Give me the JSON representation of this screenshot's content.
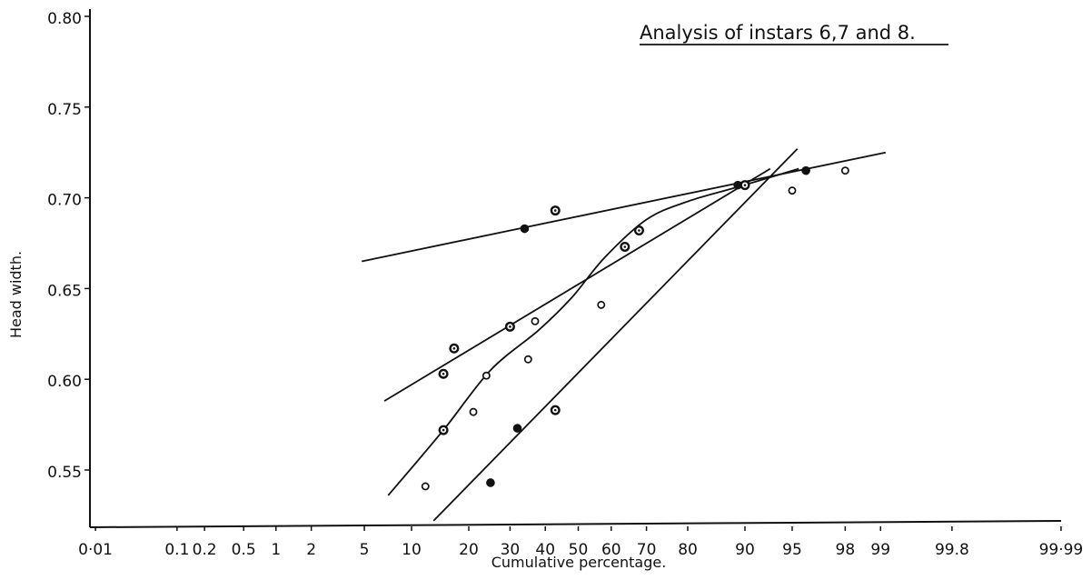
{
  "chart_data": {
    "type": "scatter",
    "title": "Analysis of instars 6,7 and 8.",
    "xlabel": "Cumulative percentage.",
    "ylabel": "Head width.",
    "x_scale": "probability",
    "x_ticks": [
      {
        "value": 0.01,
        "label": "0·01"
      },
      {
        "value": 0.1,
        "label": "0.1"
      },
      {
        "value": 0.2,
        "label": "0.2"
      },
      {
        "value": 0.5,
        "label": "0.5"
      },
      {
        "value": 1,
        "label": "1"
      },
      {
        "value": 2,
        "label": "2"
      },
      {
        "value": 5,
        "label": "5"
      },
      {
        "value": 10,
        "label": "10"
      },
      {
        "value": 20,
        "label": "20"
      },
      {
        "value": 30,
        "label": "30"
      },
      {
        "value": 40,
        "label": "40"
      },
      {
        "value": 50,
        "label": "50"
      },
      {
        "value": 60,
        "label": "60"
      },
      {
        "value": 70,
        "label": "70"
      },
      {
        "value": 80,
        "label": "80"
      },
      {
        "value": 90,
        "label": "90"
      },
      {
        "value": 95,
        "label": "95"
      },
      {
        "value": 98,
        "label": "98"
      },
      {
        "value": 99,
        "label": "99"
      },
      {
        "value": 99.8,
        "label": "99.8"
      },
      {
        "value": 99.99,
        "label": "99·99"
      }
    ],
    "y_ticks": [
      {
        "value": 0.55,
        "label": "0.55"
      },
      {
        "value": 0.6,
        "label": "0.60"
      },
      {
        "value": 0.65,
        "label": "0.65"
      },
      {
        "value": 0.7,
        "label": "0.70"
      },
      {
        "value": 0.75,
        "label": "0.75"
      },
      {
        "value": 0.8,
        "label": "0.80"
      }
    ],
    "ylim": [
      0.513,
      0.8
    ],
    "grid": false,
    "series": [
      {
        "marker": "filled",
        "points": [
          [
            34,
            0.683
          ],
          [
            32,
            0.573
          ],
          [
            25,
            0.543
          ],
          [
            89,
            0.707
          ],
          [
            96,
            0.715
          ]
        ]
      },
      {
        "marker": "dotted",
        "points": [
          [
            43,
            0.693
          ],
          [
            30,
            0.629
          ],
          [
            17,
            0.617
          ],
          [
            15,
            0.603
          ],
          [
            15,
            0.572
          ],
          [
            43,
            0.583
          ],
          [
            68,
            0.682
          ],
          [
            64,
            0.673
          ],
          [
            90,
            0.707
          ]
        ]
      },
      {
        "marker": "open",
        "points": [
          [
            12,
            0.541
          ],
          [
            21,
            0.582
          ],
          [
            24,
            0.602
          ],
          [
            35,
            0.611
          ],
          [
            37,
            0.632
          ],
          [
            57,
            0.641
          ],
          [
            95,
            0.704
          ],
          [
            98,
            0.715
          ]
        ]
      }
    ],
    "fit_lines": [
      {
        "kind": "straight",
        "points": [
          [
            4.8,
            0.665
          ],
          [
            99.1,
            0.725
          ]
        ]
      },
      {
        "kind": "straight",
        "points": [
          [
            6.8,
            0.588
          ],
          [
            93,
            0.716
          ]
        ]
      },
      {
        "kind": "straight",
        "points": [
          [
            13.3,
            0.522
          ],
          [
            95.4,
            0.727
          ]
        ]
      },
      {
        "kind": "curve",
        "points": [
          [
            7.2,
            0.536
          ],
          [
            15,
            0.572
          ],
          [
            25,
            0.605
          ],
          [
            38,
            0.627
          ],
          [
            48,
            0.645
          ],
          [
            58,
            0.667
          ],
          [
            70,
            0.688
          ],
          [
            80,
            0.698
          ],
          [
            89,
            0.706
          ],
          [
            95.5,
            0.716
          ]
        ]
      }
    ]
  }
}
